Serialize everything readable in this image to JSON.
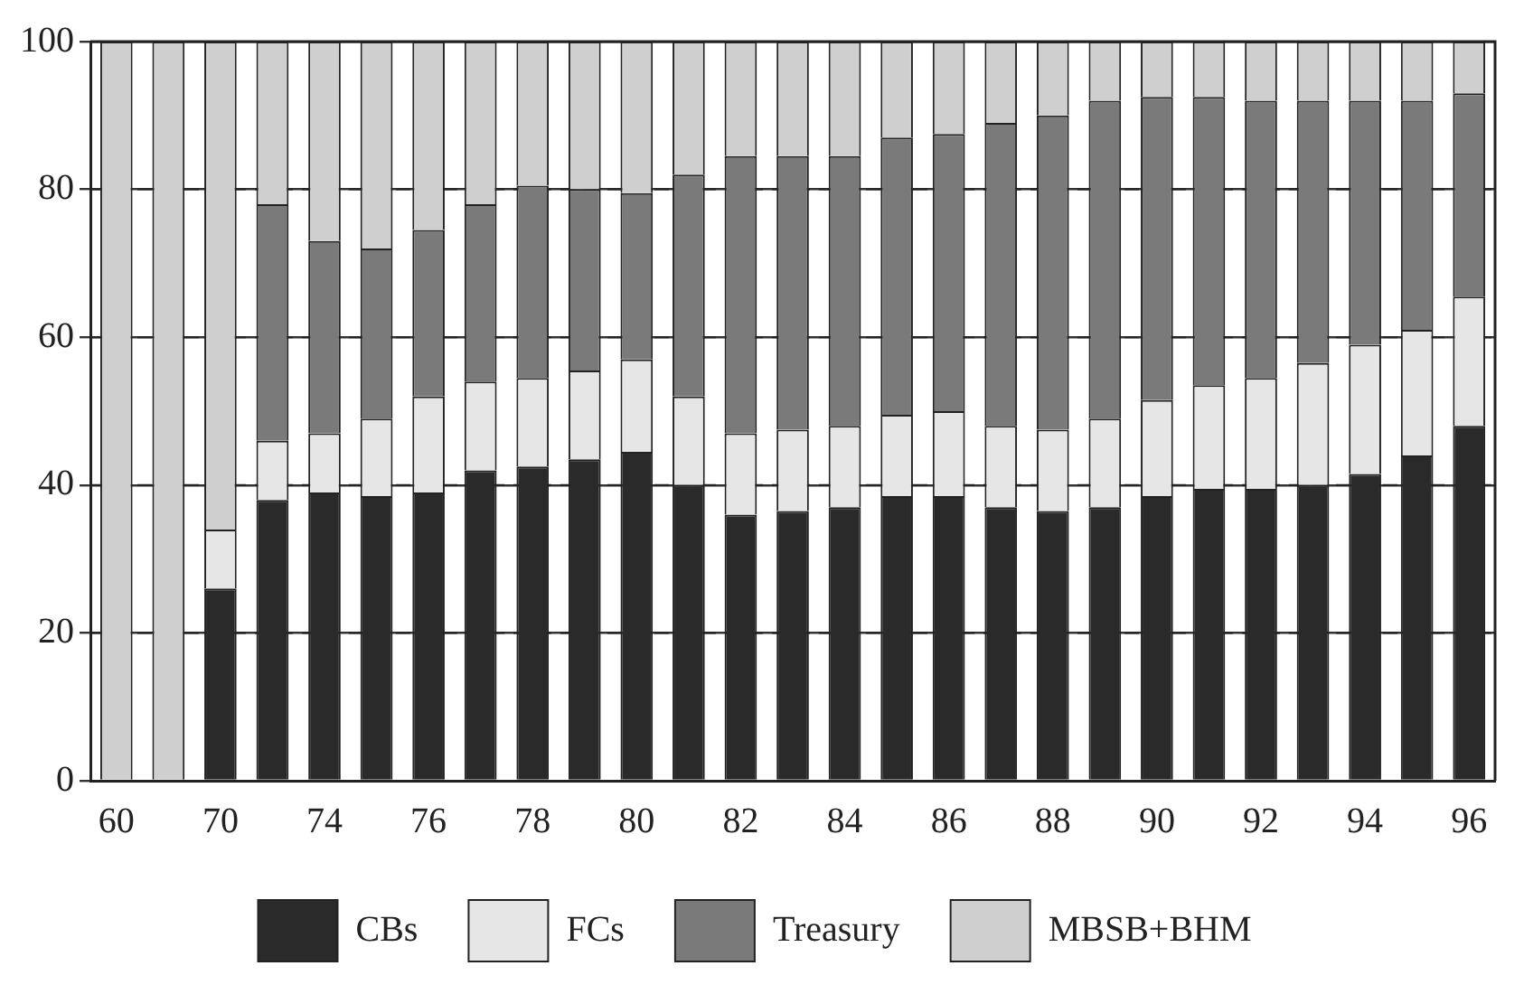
{
  "chart_data": {
    "type": "bar",
    "stacked": true,
    "categories": [
      "60",
      null,
      "70",
      null,
      "74",
      null,
      "76",
      null,
      "78",
      null,
      "80",
      null,
      "82",
      null,
      "84",
      null,
      "86",
      null,
      "88",
      null,
      "90",
      null,
      "92",
      null,
      "94",
      null,
      "96"
    ],
    "series": [
      {
        "name": "CBs",
        "color": "#2a2a2a",
        "values": [
          0,
          0,
          26,
          38,
          39,
          38.5,
          39,
          42,
          42.5,
          43.5,
          44.5,
          40,
          36,
          36.5,
          37,
          38.5,
          38.5,
          37,
          36.5,
          37,
          38.5,
          39.5,
          39.5,
          40,
          41.5,
          44,
          48
        ]
      },
      {
        "name": "FCs",
        "color": "#e6e6e6",
        "values": [
          0,
          0,
          8,
          8,
          8,
          10.5,
          13,
          12,
          12,
          12,
          12.5,
          12,
          11,
          11,
          11,
          11,
          11.5,
          11,
          11,
          12,
          13,
          14,
          15,
          16.5,
          17.5,
          17,
          17.5
        ]
      },
      {
        "name": "Treasury",
        "color": "#7a7a7a",
        "values": [
          0,
          0,
          0,
          32,
          26,
          23,
          22.5,
          24,
          26,
          24.5,
          22.5,
          30,
          37.5,
          37,
          36.5,
          37.5,
          37.5,
          41,
          42.5,
          43,
          41,
          39,
          37.5,
          35.5,
          33,
          31,
          27.5
        ]
      },
      {
        "name": "MBSB+BHM",
        "color": "#cfcfcf",
        "values": [
          100,
          100,
          66,
          22,
          27,
          28,
          25.5,
          22,
          19.5,
          20,
          20.5,
          18,
          15.5,
          15.5,
          15.5,
          13,
          12.5,
          11,
          10,
          8,
          7.5,
          7.5,
          8,
          8,
          8,
          8,
          7
        ]
      }
    ],
    "ylim": [
      0,
      100
    ],
    "yticks": [
      0,
      20,
      40,
      60,
      80,
      100
    ],
    "grid": "y",
    "legend": "bottom"
  }
}
